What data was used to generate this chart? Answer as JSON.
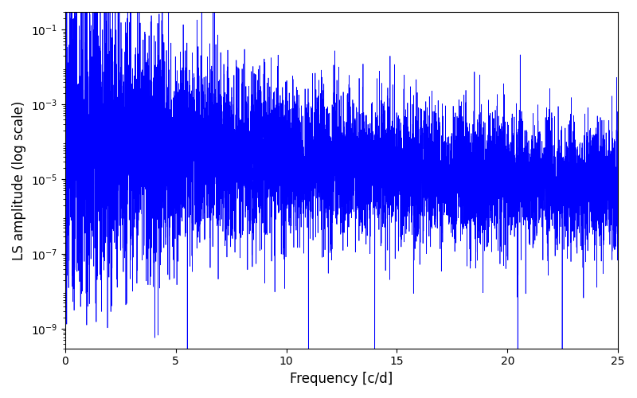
{
  "xlabel": "Frequency [c/d]",
  "ylabel": "LS amplitude (log scale)",
  "xlim": [
    0,
    25
  ],
  "ylim": [
    3e-10,
    0.3
  ],
  "yscale": "log",
  "line_color": "#0000ff",
  "line_width": 0.5,
  "figsize": [
    8.0,
    5.0
  ],
  "dpi": 100,
  "freq_max": 25.0,
  "n_points": 8000,
  "seed": 77,
  "yticks": [
    1e-09,
    1e-07,
    1e-05,
    0.001,
    0.1
  ],
  "xticks": [
    0,
    5,
    10,
    15,
    20,
    25
  ]
}
